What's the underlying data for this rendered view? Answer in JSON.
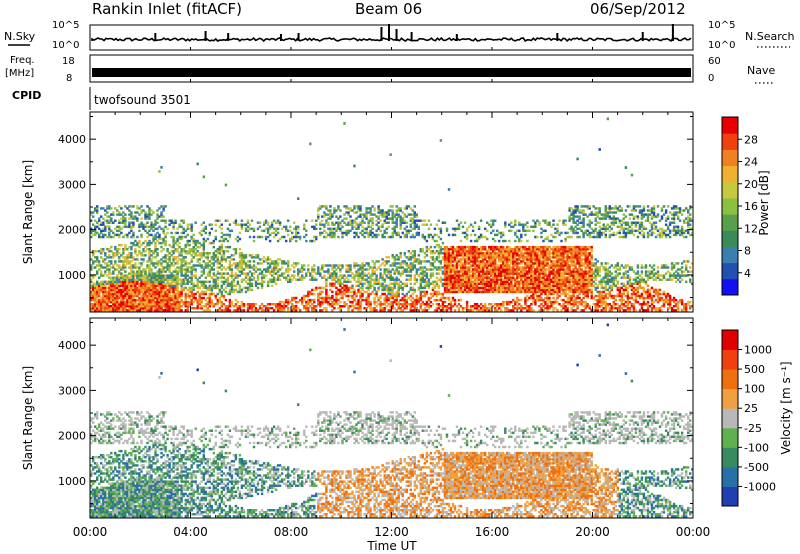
{
  "header": {
    "station": "Rankin Inlet (fitACF)",
    "beam": "Beam 06",
    "date": "06/Sep/2012"
  },
  "strips": {
    "nsky_label": "N.Sky",
    "nsky_ticks": [
      "10^5",
      "10^0"
    ],
    "nsearch_label": "N.Search",
    "nsearch_ticks": [
      "10^5",
      "10^0"
    ],
    "freq_label_1": "Freq.",
    "freq_label_2": "[MHz]",
    "freq_ticks": [
      "18",
      "8"
    ],
    "nave_label": "Nave",
    "nave_ticks": [
      "60",
      "0"
    ],
    "cpid_label": "CPID",
    "cpid_value": "twofsound 3501"
  },
  "chart_data": [
    {
      "type": "heatmap",
      "panel": "power",
      "ylabel": "Slant Range [km]",
      "xlabel": "",
      "x_ticks": [
        "00:00",
        "04:00",
        "08:00",
        "12:00",
        "16:00",
        "20:00",
        "00:00"
      ],
      "xlim_hours": [
        0,
        24
      ],
      "y_ticks": [
        1000,
        2000,
        3000,
        4000
      ],
      "ylim_km": [
        180,
        4600
      ],
      "colorbar": {
        "label": "Power [dB]",
        "ticks": [
          4,
          8,
          12,
          16,
          20,
          24,
          28
        ],
        "range": [
          0,
          30
        ],
        "colors": [
          "#1010f0",
          "#2050b0",
          "#3a7fb0",
          "#3c8a5a",
          "#5aa04a",
          "#8cc040",
          "#c8c840",
          "#f0b030",
          "#f08020",
          "#f04010",
          "#e80000"
        ]
      }
    },
    {
      "type": "heatmap",
      "panel": "velocity",
      "ylabel": "Slant Range [km]",
      "xlabel": "Time UT",
      "x_ticks": [
        "00:00",
        "04:00",
        "08:00",
        "12:00",
        "16:00",
        "20:00",
        "00:00"
      ],
      "xlim_hours": [
        0,
        24
      ],
      "y_ticks": [
        1000,
        2000,
        3000,
        4000
      ],
      "ylim_km": [
        180,
        4600
      ],
      "colorbar": {
        "label": "Velocity [m s⁻¹]",
        "ticks": [
          "1000",
          "500",
          "100",
          "25",
          "-25",
          "-100",
          "-500",
          "-1000"
        ],
        "colors": [
          "#2040b0",
          "#2a70a8",
          "#3a8a60",
          "#60b050",
          "#b8b8b8",
          "#f0a040",
          "#f07010",
          "#f04010",
          "#e00000"
        ]
      }
    }
  ],
  "colors": {
    "gray": "#bdbdbd",
    "orange": "#f08a20",
    "green": "#3c8a5a",
    "blue": "#2a5db0"
  }
}
